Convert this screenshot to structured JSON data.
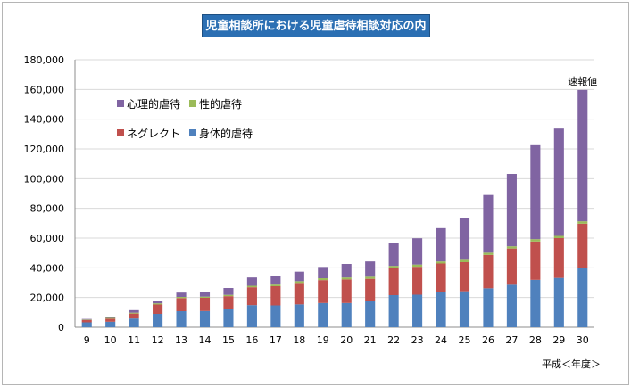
{
  "chart_data": {
    "type": "bar",
    "stacked": true,
    "title": "児童相談所における児童虐待相談対応の内容",
    "xlabel": "平成＜年度＞",
    "ylabel": "",
    "ylim": [
      0,
      180000
    ],
    "yticks": [
      "0",
      "20,000",
      "40,000",
      "60,000",
      "80,000",
      "100,000",
      "120,000",
      "140,000",
      "160,000",
      "180,000"
    ],
    "ytick_values": [
      0,
      20000,
      40000,
      60000,
      80000,
      100000,
      120000,
      140000,
      160000,
      180000
    ],
    "grid": true,
    "legend_position": "top-left",
    "categories": [
      "9",
      "10",
      "11",
      "12",
      "13",
      "14",
      "15",
      "16",
      "17",
      "18",
      "19",
      "20",
      "21",
      "22",
      "23",
      "24",
      "25",
      "26",
      "27",
      "28",
      "29",
      "30"
    ],
    "series": [
      {
        "name": "身体的虐待",
        "color": "#4f81bd",
        "values": [
          3300,
          3700,
          5900,
          9000,
          10800,
          10900,
          12000,
          14900,
          14700,
          15400,
          16300,
          16300,
          17400,
          21600,
          21900,
          23600,
          24200,
          26200,
          28600,
          31900,
          33200,
          40200
        ]
      },
      {
        "name": "ネグレクト",
        "color": "#c0504d",
        "values": [
          1600,
          2100,
          3300,
          6300,
          8800,
          8900,
          8900,
          12000,
          12900,
          14400,
          15400,
          15900,
          15200,
          18300,
          18800,
          19300,
          19600,
          22500,
          24400,
          25800,
          26800,
          29500
        ]
      },
      {
        "name": "性的虐待",
        "color": "#9bbb59",
        "values": [
          300,
          500,
          600,
          800,
          800,
          800,
          900,
          1000,
          1100,
          1200,
          1300,
          1300,
          1400,
          1400,
          1500,
          1400,
          1600,
          1500,
          1500,
          1600,
          1500,
          1600
        ]
      },
      {
        "name": "心理的虐待",
        "color": "#8064a2",
        "values": [
          400,
          700,
          1700,
          1600,
          2900,
          3100,
          4600,
          5600,
          5900,
          6400,
          7600,
          9100,
          10300,
          15100,
          17700,
          22400,
          28300,
          38800,
          48700,
          63200,
          72200,
          88400
        ]
      }
    ],
    "annotations": [
      {
        "category": "30",
        "text": "速報値"
      }
    ]
  }
}
